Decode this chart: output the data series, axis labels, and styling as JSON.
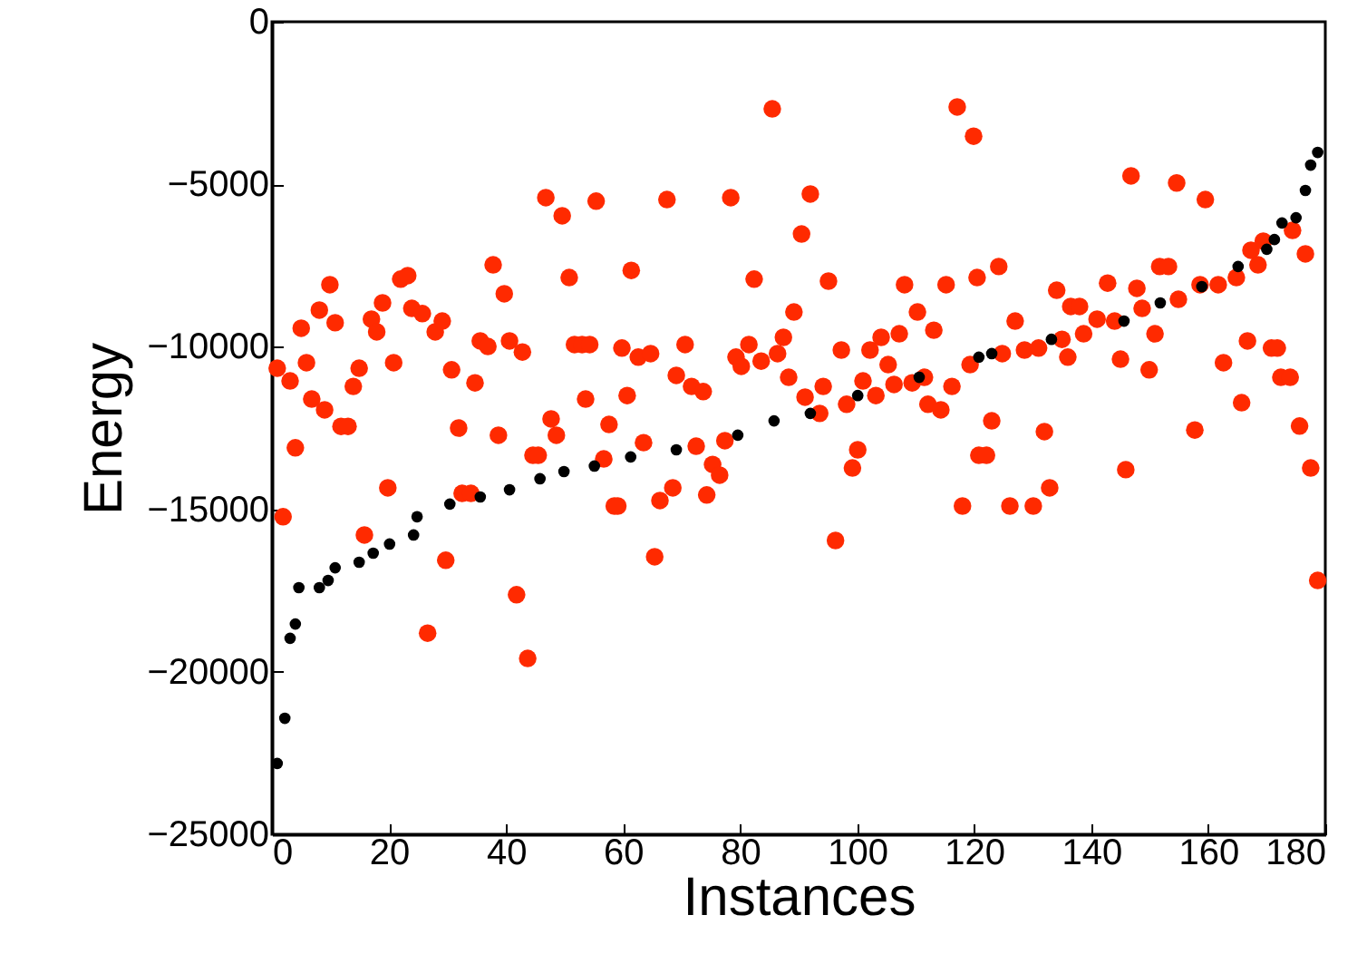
{
  "chart_data": {
    "type": "scatter",
    "xlabel": "Instances",
    "ylabel": "Energy",
    "xlim": [
      0,
      180
    ],
    "xticks": [
      0,
      20,
      40,
      60,
      80,
      100,
      120,
      140,
      160,
      180
    ],
    "ylim": [
      -25000,
      0
    ],
    "yticks": [
      -25000,
      -20000,
      -15000,
      -10000,
      -5000,
      0
    ],
    "marker": "circle",
    "series": [
      {
        "color": "#000000",
        "x": [
          0.9,
          2.2,
          3.1,
          4.0,
          4.6,
          8.1,
          9.6,
          10.8,
          14.9,
          17.3,
          20.1,
          24.2,
          24.8,
          30.4,
          35.6,
          40.6,
          45.8,
          49.9,
          55.1,
          61.3,
          69.1,
          79.6,
          85.8,
          92,
          100.1,
          110.6,
          120.8,
          123,
          133.2,
          145.6,
          151.8,
          158.9,
          165.1,
          170,
          171.3,
          172.6,
          175,
          176.6,
          177.5,
          178.7
        ],
        "values": [
          -22820,
          -21430,
          -18970,
          -18530,
          -17410,
          -17410,
          -17190,
          -16800,
          -16630,
          -16350,
          -16070,
          -15790,
          -15230,
          -14840,
          -14620,
          -14400,
          -14060,
          -13840,
          -13670,
          -13390,
          -13170,
          -12720,
          -12280,
          -12050,
          -11500,
          -10940,
          -10320,
          -10210,
          -9770,
          -9210,
          -8650,
          -8150,
          -7530,
          -7000,
          -6700,
          -6190,
          -6030,
          -5190,
          -4410,
          -4020
        ]
      },
      {
        "color": "#ff2a00",
        "x": [
          0.9,
          1.9,
          3.1,
          4.0,
          5.0,
          5.9,
          6.8,
          8.1,
          9.0,
          9.9,
          10.8,
          11.8,
          13,
          13.9,
          14.9,
          15.8,
          17.0,
          17.9,
          18.9,
          19.8,
          20.8,
          22.0,
          23.2,
          23.9,
          25.7,
          26.6,
          27.9,
          29.1,
          29.7,
          30.7,
          31.9,
          32.5,
          34.0,
          34.7,
          35.6,
          36.9,
          37.8,
          38.7,
          39.7,
          40.6,
          41.8,
          42.8,
          43.7,
          44.6,
          45.5,
          46.8,
          47.7,
          48.6,
          49.6,
          50.8,
          51.7,
          53.0,
          53.6,
          54.3,
          55.4,
          56.7,
          57.6,
          58.5,
          59.1,
          59.8,
          60.7,
          61.4,
          62.6,
          63.5,
          64.7,
          65.4,
          66.3,
          67.5,
          68.5,
          69.1,
          70.6,
          71.7,
          72.5,
          73.7,
          74.3,
          75.3,
          76.5,
          77.4,
          78.4,
          79.3,
          80.2,
          81.5,
          82.4,
          83.6,
          85.5,
          86.4,
          87.4,
          88.3,
          89.2,
          90.5,
          91.1,
          92,
          93.6,
          94.2,
          95.1,
          96.3,
          97.3,
          98.2,
          99.2,
          100.1,
          101,
          102.2,
          103.2,
          104.1,
          105.3,
          106.3,
          107.2,
          108.1,
          109.4,
          110.3,
          111.5,
          112.1,
          113.1,
          114.3,
          115.2,
          116.2,
          117.1,
          118,
          119.3,
          119.9,
          120.5,
          120.8,
          122.1,
          123,
          124.2,
          124.8,
          126.1,
          127,
          128.6,
          130.1,
          131,
          132,
          132.9,
          134.1,
          135,
          136,
          136.5,
          138,
          138.7,
          141,
          142.8,
          144,
          145,
          145.9,
          146.8,
          147.8,
          148.7,
          149.9,
          150.9,
          151.7,
          153.2,
          154.6,
          154.9,
          157.7,
          158.6,
          159.5,
          161.7,
          162.6,
          164.8,
          165.7,
          166.7,
          167.3,
          168.5,
          169.4,
          170.8,
          171.8,
          172.4,
          174.0,
          174.4,
          175.6,
          176.6,
          177.5,
          178.7
        ],
        "values": [
          -10660,
          -15230,
          -11050,
          -13110,
          -9430,
          -10490,
          -11610,
          -8870,
          -11940,
          -8090,
          -9260,
          -12450,
          -12450,
          -11220,
          -10660,
          -15790,
          -9150,
          -9540,
          -8650,
          -14340,
          -10490,
          -7920,
          -7810,
          -8820,
          -8980,
          -18810,
          -9540,
          -9210,
          -16570,
          -10710,
          -12500,
          -14510,
          -14510,
          -11110,
          -9820,
          -9990,
          -7480,
          -12720,
          -8370,
          -9820,
          -17630,
          -10160,
          -19590,
          -13340,
          -13340,
          -5410,
          -12220,
          -12720,
          -5970,
          -7870,
          -9930,
          -9930,
          -11610,
          -9930,
          -5520,
          -13450,
          -12390,
          -14900,
          -14900,
          -10040,
          -11500,
          -7650,
          -10320,
          -12950,
          -10210,
          -16460,
          -14730,
          -5470,
          -14340,
          -10880,
          -9930,
          -11220,
          -13060,
          -11380,
          -14560,
          -13620,
          -13950,
          -12890,
          -5410,
          -10320,
          -10600,
          -9930,
          -7920,
          -10440,
          -2680,
          -10210,
          -9710,
          -10940,
          -8930,
          -6530,
          -11550,
          -5300,
          -12050,
          -11220,
          -7980,
          -15960,
          -10100,
          -11770,
          -13730,
          -13170,
          -11050,
          -10100,
          -11500,
          -9710,
          -10550,
          -11160,
          -9600,
          -8090,
          -11110,
          -8930,
          -10940,
          -11770,
          -9490,
          -11940,
          -8090,
          -11220,
          -2620,
          -14900,
          -10550,
          -3520,
          -7870,
          -13340,
          -13340,
          -12280,
          -7530,
          -10210,
          -14900,
          -9210,
          -10100,
          -14900,
          -10040,
          -12610,
          -14340,
          -8260,
          -9770,
          -10320,
          -8760,
          -8760,
          -9600,
          -9150,
          -8040,
          -9210,
          -10380,
          -13780,
          -4740,
          -8200,
          -8820,
          -10710,
          -9600,
          -7530,
          -7530,
          -4960,
          -8540,
          -12560,
          -8090,
          -5470,
          -8090,
          -10490,
          -7870,
          -11720,
          -9820,
          -7030,
          -7480,
          -6750,
          -10040,
          -10040,
          -10940,
          -10940,
          -6420,
          -12440,
          -7140,
          -13730,
          -17190
        ]
      }
    ]
  }
}
